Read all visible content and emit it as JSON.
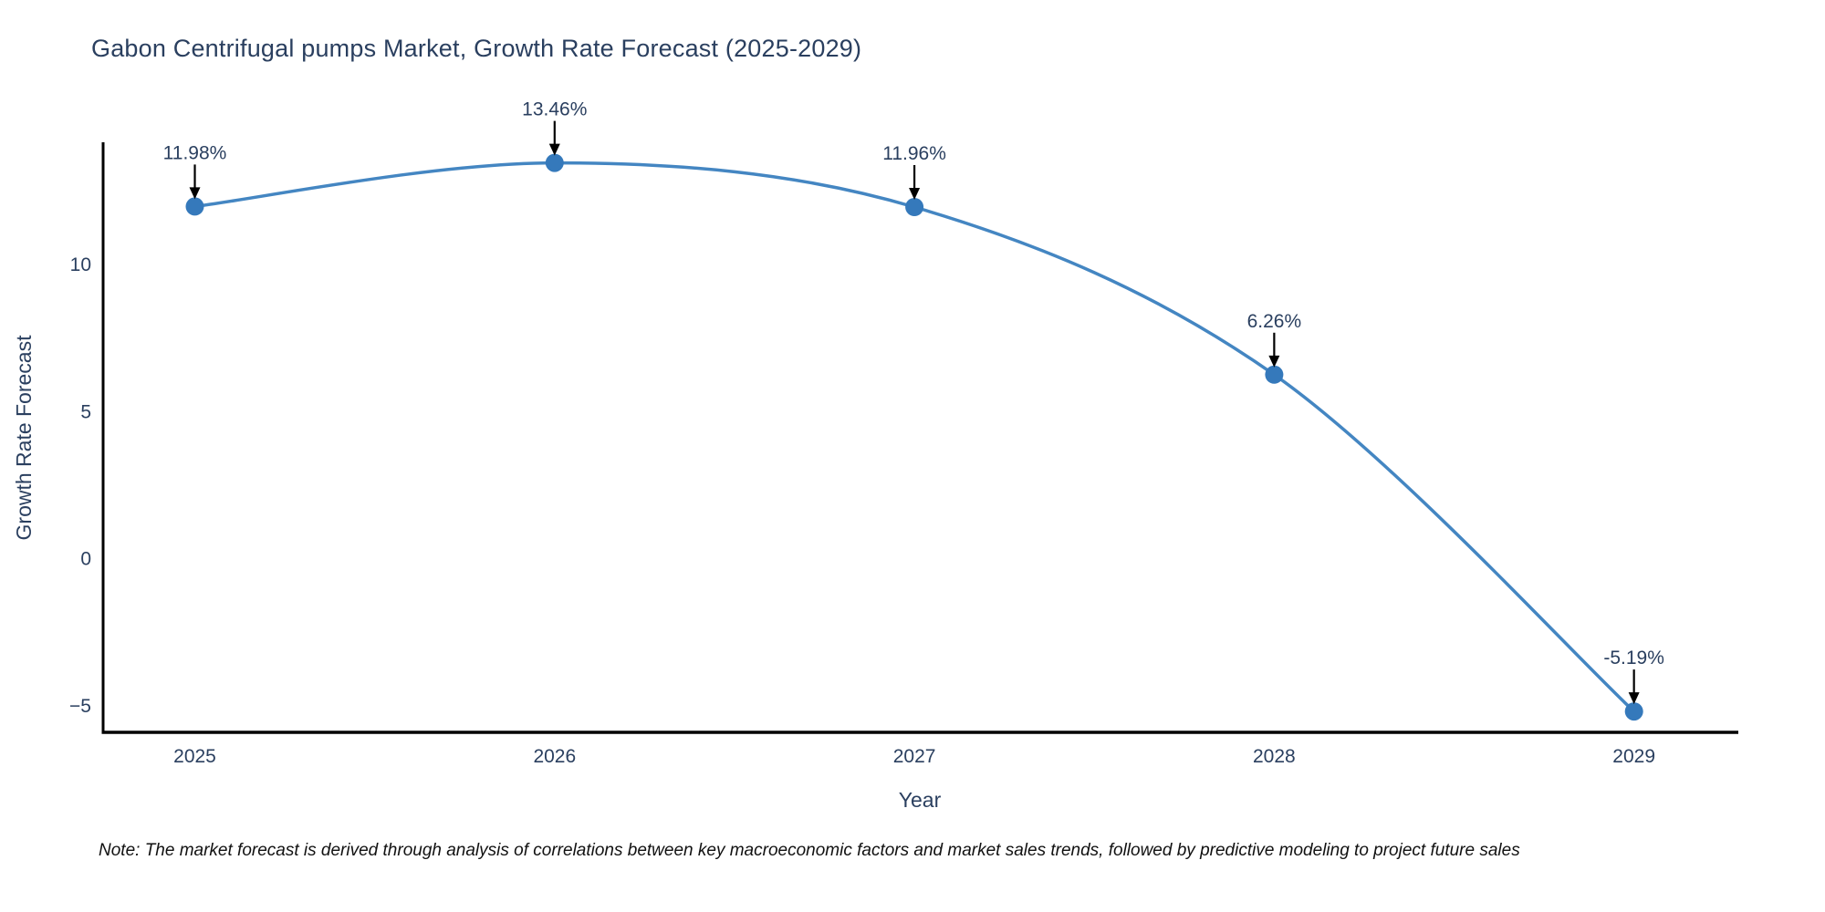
{
  "title": "Gabon Centrifugal pumps Market, Growth Rate Forecast (2025-2029)",
  "note": "Note: The market forecast is derived through analysis of correlations between key macroeconomic factors and market sales trends, followed by predictive modeling to project future sales",
  "colors": {
    "title_text": "#2a3f5f",
    "tick_text": "#2a3f5f",
    "axis_line": "#000000",
    "line": "#4486c2",
    "marker": "#3579bb",
    "annotation_text": "#2a3f5f",
    "annotation_arrow": "#000000",
    "note_text": "#111111",
    "background": "#ffffff"
  },
  "chart_data": {
    "type": "line",
    "line_shape": "spline",
    "title": "Gabon Centrifugal pumps Market, Growth Rate Forecast (2025-2029)",
    "xlabel": "Year",
    "ylabel": "Growth Rate Forecast",
    "x": [
      2025,
      2026,
      2027,
      2028,
      2029
    ],
    "y": [
      11.98,
      13.46,
      11.96,
      6.26,
      -5.19
    ],
    "point_labels": [
      "11.98%",
      "13.46%",
      "11.96%",
      "6.26%",
      "-5.19%"
    ],
    "xticks": [
      2025,
      2026,
      2027,
      2028,
      2029
    ],
    "xtick_labels": [
      "2025",
      "2026",
      "2027",
      "2028",
      "2029"
    ],
    "yticks": [
      -5,
      0,
      5,
      10
    ],
    "ytick_labels": [
      "−5",
      "0",
      "5",
      "10"
    ],
    "xlim": [
      2024.74,
      2029.29
    ],
    "ylim": [
      -5.9,
      14.1
    ],
    "grid": false,
    "legend": false,
    "annotations": "value labels with downward arrows at each data point"
  }
}
